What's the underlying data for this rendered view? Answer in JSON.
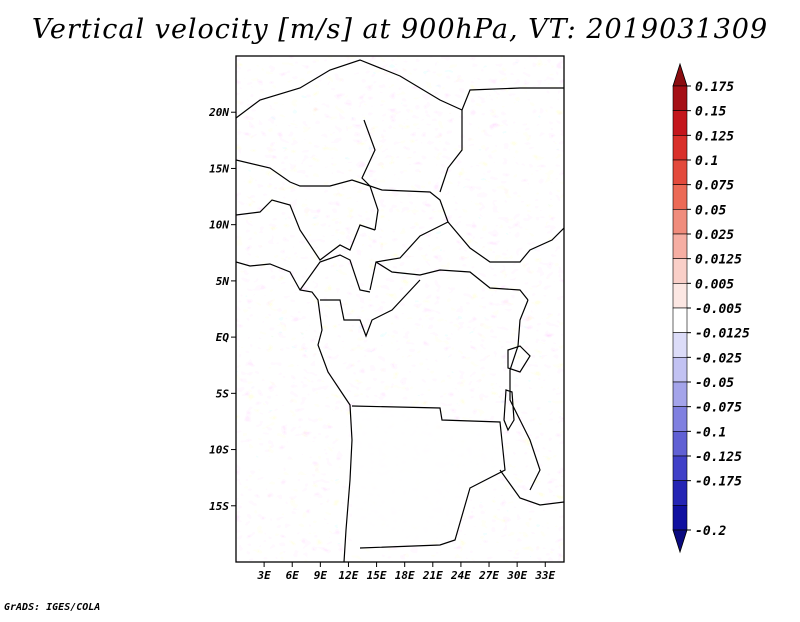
{
  "title": "Vertical velocity [m/s] at 900hPa, VT: 2019031309",
  "credit": "GrADS: IGES/COLA",
  "map": {
    "lon_range": [
      0,
      35
    ],
    "lat_range": [
      -20,
      25
    ],
    "lat_ticks": [
      {
        "value": 20,
        "label": "20N"
      },
      {
        "value": 15,
        "label": "15N"
      },
      {
        "value": 10,
        "label": "10N"
      },
      {
        "value": 5,
        "label": "5N"
      },
      {
        "value": 0,
        "label": "EQ"
      },
      {
        "value": -5,
        "label": "5S"
      },
      {
        "value": -10,
        "label": "10S"
      },
      {
        "value": -15,
        "label": "15S"
      }
    ],
    "lon_ticks": [
      {
        "value": 3,
        "label": "3E"
      },
      {
        "value": 6,
        "label": "6E"
      },
      {
        "value": 9,
        "label": "9E"
      },
      {
        "value": 12,
        "label": "12E"
      },
      {
        "value": 15,
        "label": "15E"
      },
      {
        "value": 18,
        "label": "18E"
      },
      {
        "value": 21,
        "label": "21E"
      },
      {
        "value": 24,
        "label": "24E"
      },
      {
        "value": 27,
        "label": "27E"
      },
      {
        "value": 30,
        "label": "30E"
      },
      {
        "value": 33,
        "label": "33E"
      }
    ]
  },
  "colorbar": {
    "labels": [
      "0.175",
      "0.15",
      "0.125",
      "0.1",
      "0.075",
      "0.05",
      "0.025",
      "0.0125",
      "0.005",
      "-0.005",
      "-0.0125",
      "-0.025",
      "-0.05",
      "-0.075",
      "-0.1",
      "-0.125",
      "-0.175",
      "-0.2"
    ],
    "colors": [
      "#a50f15",
      "#c4161c",
      "#d9302a",
      "#e34a3c",
      "#ec6a56",
      "#f08c7c",
      "#f6aea3",
      "#f9cfc8",
      "#fce7e3",
      "#ffffff",
      "#dcdcf8",
      "#c2c2f2",
      "#a4a4ea",
      "#8080e0",
      "#6060d4",
      "#4040c8",
      "#2424b4",
      "#1010a0"
    ],
    "top_arrow_color": "#8b0d10",
    "bottom_arrow_color": "#0a0a80"
  }
}
